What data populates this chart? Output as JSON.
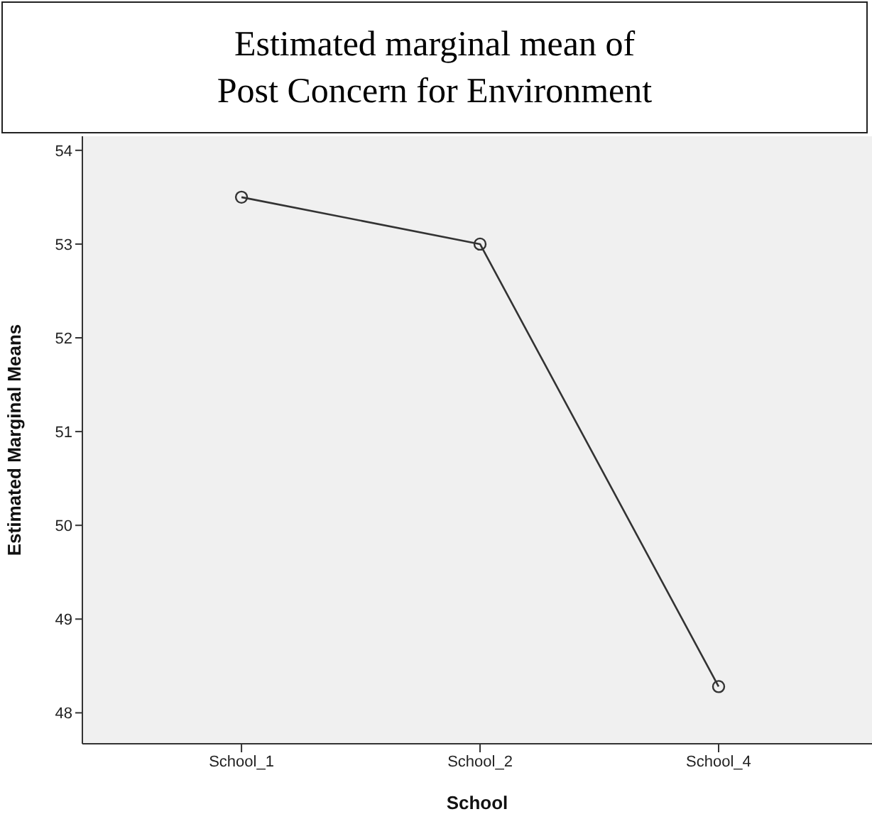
{
  "chart_data": {
    "type": "line",
    "title": "Estimated marginal mean of Post Concern for Environment",
    "xlabel": "School",
    "ylabel": "Estimated Marginal Means",
    "categories": [
      "School_1",
      "School_2",
      "School_4"
    ],
    "series": [
      {
        "color": "#333333",
        "values": [
          53.5,
          53.0,
          48.28
        ]
      }
    ],
    "ylim": [
      47.67,
      54.15
    ],
    "yticks": [
      48,
      49,
      50,
      51,
      52,
      53,
      54
    ],
    "grid": false,
    "legend": false,
    "marker": "circle",
    "line_style": "solid"
  }
}
